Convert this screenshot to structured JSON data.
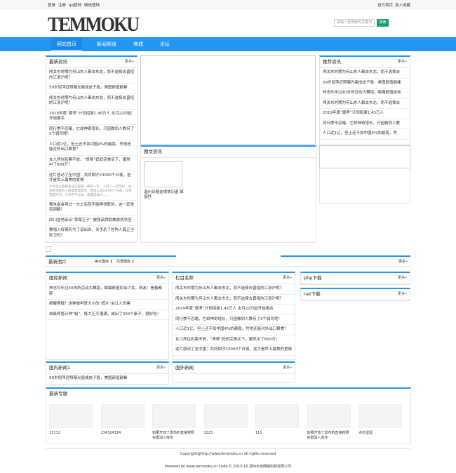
{
  "topbar": {
    "left": [
      "登录",
      "注册",
      "qq登陆",
      "微信登陆"
    ],
    "right": [
      "设为首页",
      "加入收藏"
    ]
  },
  "logo": "TEMMOKU",
  "search": {
    "placeholder": "请输入要搜索的关键词",
    "button": "搜索"
  },
  "nav": [
    "网站首页",
    "新闻频道",
    "商城",
    "论坛"
  ],
  "latest": {
    "title": "最新资讯",
    "more": "更多»",
    "items": [
      {
        "text": "闯关东时期为何山东人都去东北，而不选择去晋绍的江浙沪呢？"
      },
      {
        "text": "59岁倪萍近照曝光瘦成皮子脸，美图颜值巅峰"
      },
      {
        "text": "闯关东时期为何山东人都去东北，而不选择去晋绍的江浙沪呢？"
      },
      {
        "text": "2019年度“属考”计划招录1.45万人 本月22日起开始报名"
      },
      {
        "text": "同行惨不忍睹，它却神奇增长，只因做同人教何了3个骑司呢！"
      },
      {
        "text": "人口近1亿，但土还不如中国4%的越南，凭啥还能对外出口粮食？"
      },
      {
        "text": "女儿然住彩票不放，“贵帮”妈妈完美买下，属然中了600万！"
      },
      {
        "text": "这片感动了全中国：共同相守23000个日夜，这才是世上最美的爱情",
        "summary": "今年是大家都关注这篇最一样的一年，人到了一定年纪，总是希望能有人陪着慢慢变老，相濡以沫23000个日夜，没有轰轰烈烈，只有平平淡淡，却最是动人……"
      },
      {
        "text": "俄朱金金项过一次之后就不能再领取的，这一定是有调解！"
      },
      {
        "text": "四川盆地诉讼“草莓王子” 做强品牌助推脱贫攻坚"
      },
      {
        "text": "教唱入侍钢历为了追出去，关手杀了拴狗人算正当防卫吗？"
      }
    ]
  },
  "recommend": {
    "title": "推荐资讯",
    "more": "更多»",
    "items": [
      {
        "text": "闯关东时期为何山东人都去东北，而不选择去"
      },
      {
        "text": "59岁倪萍近照曝光瘦成皮子脸，美图颜值巅峰"
      },
      {
        "text": "林志玲年过40去所活动大舞蹈，瞬爆颜值如仙"
      },
      {
        "text": "闯关东时期为何山东人都去东北，而不选择去"
      },
      {
        "text": "2019年度“属考”计划招录1.45万人"
      },
      {
        "text": "同行惨不忍睹，它却神奇增长，只因做同人教"
      },
      {
        "text": "人口近1亿，但土还不如中国4%的越南，凭"
      }
    ]
  },
  "imgnews": {
    "title": "图文资讯",
    "caption": "温州日报金缕依记者 算接抒"
  },
  "pics": {
    "title": "最新图片",
    "tabs": [
      "美女图库",
      "风景图库"
    ],
    "more": "更多»"
  },
  "intl": {
    "title": "国际新闻",
    "more": "更多»",
    "items": [
      {
        "text": "林志玲年过40去所活动大舞蹈，瞬爆颜值如仙少女，网友：看着都醉"
      },
      {
        "text": "绝酸警报！这种做甲是大小的“纸片”会让人伤害"
      },
      {
        "text": "血脉养殖计种“蚂”，既大乞又灌满，成出了300个素子，很好吃！"
      }
    ]
  },
  "column": {
    "title": "栏目名称",
    "more": "更多»",
    "items": [
      {
        "text": "闯关东时期为何山东人都去东北，而不选择去晋绍的江浙沪呢？"
      },
      {
        "text": "闯关东时期为何山东人都去东北，而不选择去晋绍的江浙沪呢？"
      },
      {
        "text": "2019年度“属考”计划招录1.45万人 本月22日起开始报名"
      },
      {
        "text": "同行惨不忍睹，它却神奇增长，只因做同人教何了3个骑司呢！"
      },
      {
        "text": "人口近1亿，但土还不如中国4%的越南，凭啥还能对外出口粮食？"
      },
      {
        "text": "女儿然住彩票不放，“贵帮”妈妈完美买下，属然中了600万！"
      },
      {
        "text": "这片感动了全中国：共同相守23000个日夜，这才是世上最美的爱情"
      }
    ]
  },
  "php": {
    "title": "php下载",
    "more": "更多»",
    "items": []
  },
  "net": {
    "title": "net下载",
    "more": "更多»",
    "items": []
  },
  "domestic": {
    "title": "国内新闻1",
    "more": "更多»",
    "items": [
      {
        "text": "59岁倪萍近照曝光瘦成皮子脸，美图颜值巅峰"
      }
    ]
  },
  "foreign": {
    "title": "国外新闻",
    "more": "更多»",
    "items": []
  },
  "topics": {
    "title": "最新专题",
    "items": [
      "11112",
      "234324324",
      "如果开放了发布的直接按照实键消入库专",
      "2223",
      "111",
      "如果开放了发布的直接按照实键消入库专",
      "点杰湿湿"
    ]
  },
  "footer": {
    "copyright": "Copyright@http://www.temmoku.cn all rights reserved",
    "powered": "Powered by www.temmoku.cn Code © 2015-16 郑州天目网络科技有限公司"
  }
}
